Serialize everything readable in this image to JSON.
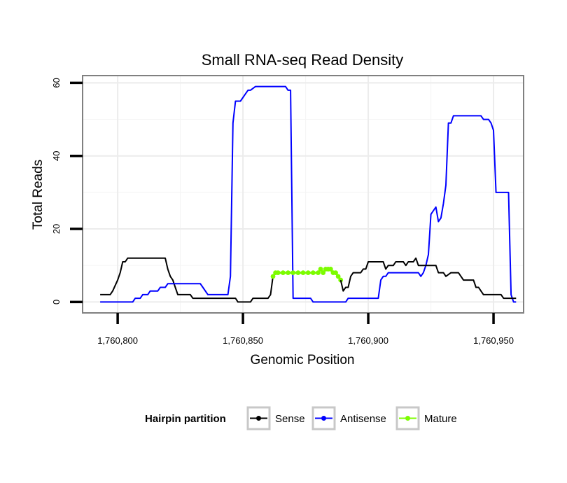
{
  "chart_data": {
    "type": "line",
    "title": "Small RNA-seq Read Density",
    "xlabel": "Genomic Position",
    "ylabel": "Total Reads",
    "xlim": [
      1760786,
      1760962
    ],
    "ylim": [
      -3,
      62
    ],
    "xticks": [
      1760800,
      1760850,
      1760900,
      1760950
    ],
    "xtick_labels": [
      "1,760,800",
      "1,760,850",
      "1,760,900",
      "1,760,950"
    ],
    "yticks": [
      0,
      20,
      40,
      60
    ],
    "ytick_labels": [
      "0",
      "20",
      "40",
      "60"
    ],
    "grid": true,
    "legend": {
      "title": "Hairpin partition",
      "position": "bottom"
    },
    "series": [
      {
        "name": "Sense",
        "color": "#000000",
        "points": [
          [
            1760793,
            2
          ],
          [
            1760797,
            2
          ],
          [
            1760798,
            3
          ],
          [
            1760800,
            6
          ],
          [
            1760801,
            8
          ],
          [
            1760802,
            11
          ],
          [
            1760803,
            11
          ],
          [
            1760804,
            12
          ],
          [
            1760806,
            12
          ],
          [
            1760808,
            12
          ],
          [
            1760810,
            12
          ],
          [
            1760819,
            12
          ],
          [
            1760820,
            9
          ],
          [
            1760821,
            7
          ],
          [
            1760822,
            6
          ],
          [
            1760823,
            4
          ],
          [
            1760824,
            2
          ],
          [
            1760825,
            2
          ],
          [
            1760829,
            2
          ],
          [
            1760830,
            1
          ],
          [
            1760835,
            1
          ],
          [
            1760839,
            1
          ],
          [
            1760840,
            1
          ],
          [
            1760845,
            1
          ],
          [
            1760847,
            1
          ],
          [
            1760848,
            0
          ],
          [
            1760853,
            0
          ],
          [
            1760854,
            1
          ],
          [
            1760859,
            1
          ],
          [
            1760860,
            1
          ],
          [
            1760861,
            2
          ],
          [
            1760862,
            7
          ]
        ]
      },
      {
        "name": "Antisense",
        "color": "#0000ff",
        "points": [
          [
            1760793,
            0
          ],
          [
            1760806,
            0
          ],
          [
            1760807,
            1
          ],
          [
            1760809,
            1
          ],
          [
            1760810,
            2
          ],
          [
            1760812,
            2
          ],
          [
            1760813,
            3
          ],
          [
            1760816,
            3
          ],
          [
            1760817,
            4
          ],
          [
            1760819,
            4
          ],
          [
            1760820,
            5
          ],
          [
            1760823,
            5
          ],
          [
            1760826,
            5
          ],
          [
            1760827,
            5
          ],
          [
            1760832,
            5
          ],
          [
            1760833,
            5
          ],
          [
            1760834,
            4
          ],
          [
            1760836,
            2
          ],
          [
            1760839,
            2
          ],
          [
            1760843,
            2
          ],
          [
            1760844,
            2
          ],
          [
            1760845,
            7
          ],
          [
            1760846,
            49
          ],
          [
            1760847,
            55
          ],
          [
            1760849,
            55
          ],
          [
            1760851,
            57
          ],
          [
            1760852,
            58
          ],
          [
            1760853,
            58
          ],
          [
            1760855,
            59
          ],
          [
            1760858,
            59
          ],
          [
            1760866,
            59
          ],
          [
            1760867,
            59
          ],
          [
            1760868,
            58
          ],
          [
            1760869,
            58
          ],
          [
            1760870,
            1
          ],
          [
            1760874,
            1
          ],
          [
            1760877,
            1
          ],
          [
            1760878,
            0
          ],
          [
            1760880,
            0
          ],
          [
            1760888,
            0
          ],
          [
            1760890,
            0
          ],
          [
            1760891,
            0
          ],
          [
            1760892,
            1
          ],
          [
            1760895,
            1
          ],
          [
            1760899,
            1
          ],
          [
            1760904,
            1
          ],
          [
            1760905,
            6
          ],
          [
            1760906,
            7
          ],
          [
            1760907,
            7
          ],
          [
            1760908,
            8
          ],
          [
            1760913,
            8
          ],
          [
            1760920,
            8
          ],
          [
            1760921,
            7
          ],
          [
            1760922,
            8
          ],
          [
            1760923,
            10
          ],
          [
            1760924,
            13
          ],
          [
            1760925,
            24
          ],
          [
            1760926,
            25
          ],
          [
            1760927,
            26
          ],
          [
            1760928,
            22
          ],
          [
            1760929,
            23
          ],
          [
            1760930,
            27
          ],
          [
            1760931,
            32
          ],
          [
            1760932,
            49
          ],
          [
            1760933,
            49
          ],
          [
            1760934,
            51
          ],
          [
            1760939,
            51
          ],
          [
            1760945,
            51
          ],
          [
            1760946,
            50
          ],
          [
            1760948,
            50
          ],
          [
            1760949,
            49
          ],
          [
            1760950,
            47
          ],
          [
            1760951,
            30
          ],
          [
            1760954,
            30
          ],
          [
            1760956,
            30
          ],
          [
            1760957,
            2
          ],
          [
            1760958,
            0
          ],
          [
            1760959,
            0
          ]
        ]
      },
      {
        "name": "Mature",
        "color": "#7cfc00",
        "points": [
          [
            1760862,
            7
          ],
          [
            1760863,
            8
          ],
          [
            1760864,
            8
          ],
          [
            1760866,
            8
          ],
          [
            1760868,
            8
          ],
          [
            1760870,
            8
          ],
          [
            1760872,
            8
          ],
          [
            1760874,
            8
          ],
          [
            1760876,
            8
          ],
          [
            1760878,
            8
          ],
          [
            1760880,
            8
          ],
          [
            1760881,
            9
          ],
          [
            1760882,
            8
          ],
          [
            1760883,
            9
          ],
          [
            1760884,
            9
          ],
          [
            1760885,
            9
          ],
          [
            1760886,
            8
          ],
          [
            1760887,
            8
          ],
          [
            1760888,
            7
          ],
          [
            1760889,
            6
          ]
        ]
      },
      {
        "name": "Sense",
        "color": "#000000",
        "points": [
          [
            1760889,
            6
          ],
          [
            1760890,
            3
          ],
          [
            1760891,
            4
          ],
          [
            1760892,
            4
          ],
          [
            1760893,
            7
          ],
          [
            1760894,
            8
          ],
          [
            1760896,
            8
          ],
          [
            1760897,
            8
          ],
          [
            1760898,
            9
          ],
          [
            1760899,
            9
          ],
          [
            1760900,
            11
          ],
          [
            1760902,
            11
          ],
          [
            1760906,
            11
          ],
          [
            1760907,
            9
          ],
          [
            1760908,
            10
          ],
          [
            1760910,
            10
          ],
          [
            1760911,
            11
          ],
          [
            1760912,
            11
          ],
          [
            1760914,
            11
          ],
          [
            1760915,
            10
          ],
          [
            1760916,
            11
          ],
          [
            1760918,
            11
          ],
          [
            1760919,
            12
          ],
          [
            1760920,
            10
          ],
          [
            1760921,
            10
          ],
          [
            1760926,
            10
          ],
          [
            1760927,
            10
          ],
          [
            1760928,
            8
          ],
          [
            1760930,
            8
          ],
          [
            1760931,
            7
          ],
          [
            1760933,
            8
          ],
          [
            1760935,
            8
          ],
          [
            1760936,
            8
          ],
          [
            1760937,
            7
          ],
          [
            1760938,
            6
          ],
          [
            1760941,
            6
          ],
          [
            1760942,
            6
          ],
          [
            1760943,
            4
          ],
          [
            1760944,
            4
          ],
          [
            1760945,
            3
          ],
          [
            1760946,
            2
          ],
          [
            1760950,
            2
          ],
          [
            1760953,
            2
          ],
          [
            1760954,
            1
          ],
          [
            1760959,
            1
          ]
        ]
      }
    ]
  }
}
